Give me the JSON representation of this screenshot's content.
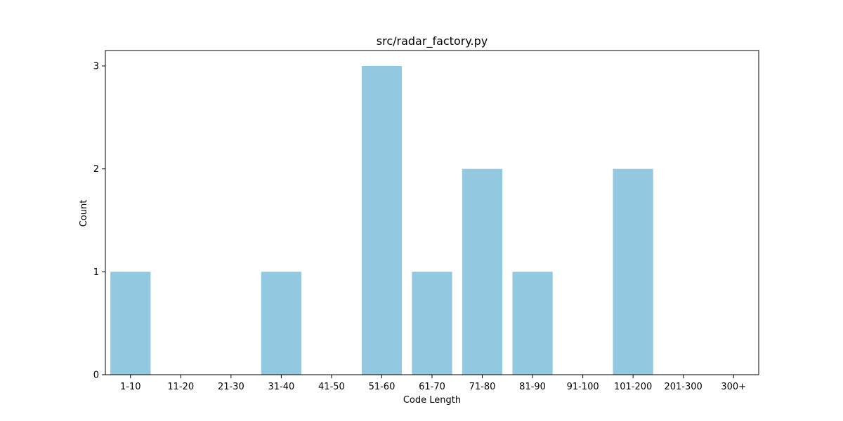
{
  "chart_data": {
    "type": "bar",
    "title": "src/radar_factory.py",
    "xlabel": "Code Length",
    "ylabel": "Count",
    "categories": [
      "1-10",
      "11-20",
      "21-30",
      "31-40",
      "41-50",
      "51-60",
      "61-70",
      "71-80",
      "81-90",
      "91-100",
      "101-200",
      "201-300",
      "300+"
    ],
    "values": [
      1,
      0,
      0,
      1,
      0,
      3,
      1,
      2,
      1,
      0,
      2,
      0,
      0
    ],
    "ylim": [
      0,
      3.15
    ],
    "yticks": [
      0,
      1,
      2,
      3
    ],
    "grid": false,
    "legend": "none",
    "bar_color": "#92c9e0"
  }
}
